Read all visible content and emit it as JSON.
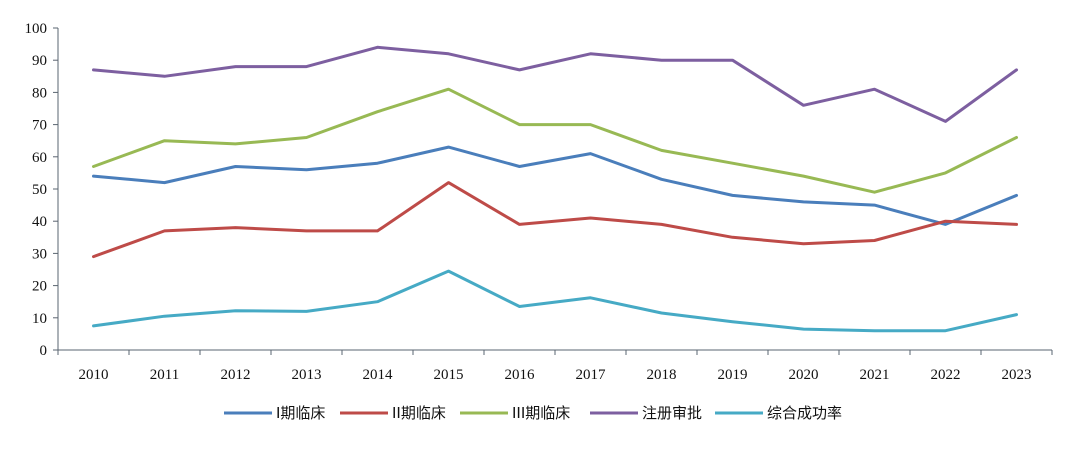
{
  "chart_data": {
    "type": "line",
    "title": "",
    "xlabel": "",
    "ylabel": "",
    "ylim": [
      0,
      100
    ],
    "yticks": [
      0,
      10,
      20,
      30,
      40,
      50,
      60,
      70,
      80,
      90,
      100
    ],
    "grid": false,
    "legend_position": "bottom",
    "categories": [
      "2010",
      "2011",
      "2012",
      "2013",
      "2014",
      "2015",
      "2016",
      "2017",
      "2018",
      "2019",
      "2020",
      "2021",
      "2022",
      "2023"
    ],
    "series": [
      {
        "name": "I期临床",
        "color": "#4a7ebb",
        "values": [
          54,
          52,
          57,
          56,
          58,
          63,
          57,
          61,
          53,
          48,
          46,
          45,
          39,
          48
        ]
      },
      {
        "name": "II期临床",
        "color": "#be4b48",
        "values": [
          29,
          37,
          38,
          37,
          37,
          52,
          39,
          41,
          39,
          35,
          33,
          34,
          40,
          39
        ]
      },
      {
        "name": "III期临床",
        "color": "#98b954",
        "values": [
          57,
          65,
          64,
          66,
          74,
          81,
          70,
          70,
          62,
          58,
          54,
          49,
          55,
          66
        ]
      },
      {
        "name": "注册审批",
        "color": "#7d5fa0",
        "values": [
          87,
          85,
          88,
          88,
          94,
          92,
          87,
          92,
          90,
          90,
          76,
          81,
          71,
          87
        ]
      },
      {
        "name": "综合成功率",
        "color": "#46aac5",
        "values": [
          7.5,
          10.5,
          12.2,
          12,
          15,
          24.5,
          13.5,
          16.2,
          11.5,
          8.8,
          6.5,
          6,
          6,
          11
        ]
      }
    ]
  }
}
